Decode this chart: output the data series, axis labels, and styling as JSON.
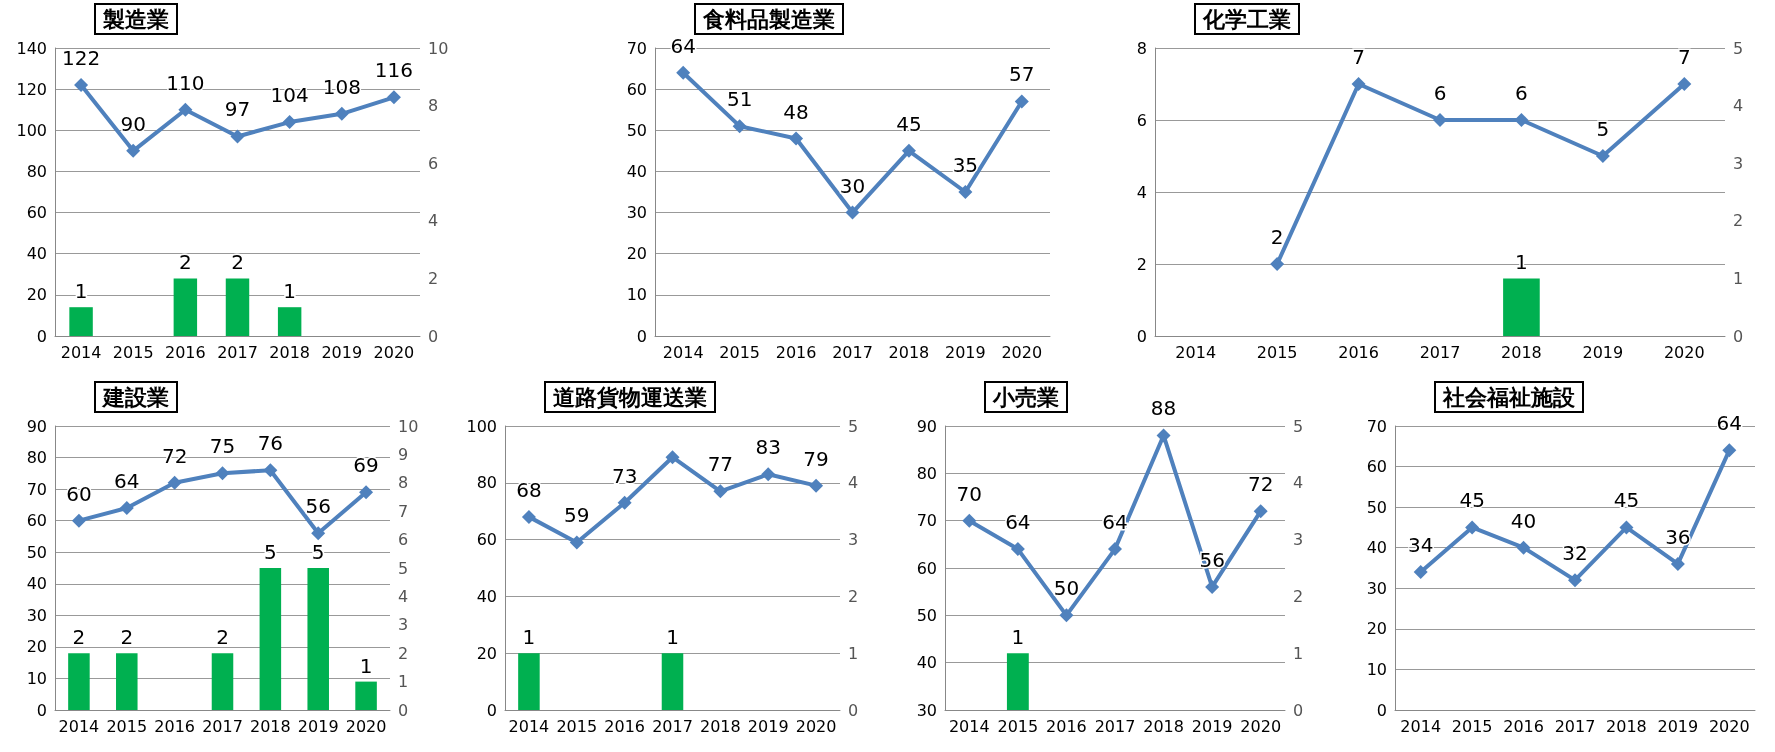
{
  "chart_data": [
    {
      "type": "line",
      "title": "製造業",
      "categories": [
        "2014",
        "2015",
        "2016",
        "2017",
        "2018",
        "2019",
        "2020"
      ],
      "ylim": [
        0,
        140
      ],
      "yticks": [
        0,
        20,
        40,
        60,
        80,
        100,
        120,
        140
      ],
      "y2lim": [
        0,
        10
      ],
      "y2ticks": [
        0,
        2,
        4,
        6,
        8,
        10
      ],
      "grid": "y",
      "marker": "diamond",
      "data_labels": true,
      "series": [
        {
          "type": "bar",
          "axis": "y2",
          "color": "#00b050",
          "values": [
            1,
            null,
            2,
            2,
            1,
            null,
            null
          ]
        },
        {
          "color": "#4f81bd",
          "values": [
            122,
            90,
            110,
            97,
            104,
            108,
            116
          ]
        }
      ]
    },
    {
      "type": "line",
      "title": "食料品製造業",
      "categories": [
        "2014",
        "2015",
        "2016",
        "2017",
        "2018",
        "2019",
        "2020"
      ],
      "ylim": [
        0,
        70
      ],
      "yticks": [
        0,
        10,
        20,
        30,
        40,
        50,
        60,
        70
      ],
      "grid": "y",
      "marker": "diamond",
      "data_labels": true,
      "series": [
        {
          "color": "#4f81bd",
          "values": [
            64,
            51,
            48,
            30,
            45,
            35,
            57
          ]
        }
      ]
    },
    {
      "type": "line",
      "title": "化学工業",
      "categories": [
        "2014",
        "2015",
        "2016",
        "2017",
        "2018",
        "2019",
        "2020"
      ],
      "ylim": [
        0,
        8
      ],
      "yticks": [
        0,
        2,
        4,
        6,
        8
      ],
      "y2lim": [
        0,
        5
      ],
      "y2ticks": [
        0,
        1,
        2,
        3,
        4,
        5
      ],
      "grid": "y",
      "marker": "diamond",
      "data_labels": true,
      "series": [
        {
          "type": "bar",
          "axis": "y2",
          "color": "#00b050",
          "values": [
            null,
            null,
            null,
            null,
            1,
            null,
            null
          ]
        },
        {
          "color": "#4f81bd",
          "values": [
            null,
            2,
            7,
            6,
            6,
            5,
            7
          ]
        }
      ]
    },
    {
      "type": "line",
      "title": "建設業",
      "categories": [
        "2014",
        "2015",
        "2016",
        "2017",
        "2018",
        "2019",
        "2020"
      ],
      "ylim": [
        0,
        90
      ],
      "yticks": [
        0,
        10,
        20,
        30,
        40,
        50,
        60,
        70,
        80,
        90
      ],
      "y2lim": [
        0,
        10
      ],
      "y2ticks": [
        0,
        1,
        2,
        3,
        4,
        5,
        6,
        7,
        8,
        9,
        10
      ],
      "grid": "y",
      "marker": "diamond",
      "data_labels": true,
      "series": [
        {
          "type": "bar",
          "axis": "y2",
          "color": "#00b050",
          "values": [
            2,
            2,
            null,
            2,
            5,
            5,
            1
          ]
        },
        {
          "color": "#4f81bd",
          "values": [
            60,
            64,
            72,
            75,
            76,
            56,
            69
          ]
        }
      ]
    },
    {
      "type": "line",
      "title": "道路貨物運送業",
      "categories": [
        "2014",
        "2015",
        "2016",
        "2017",
        "2018",
        "2019",
        "2020"
      ],
      "ylim": [
        0,
        100
      ],
      "yticks": [
        0,
        20,
        40,
        60,
        80,
        100
      ],
      "y2lim": [
        0,
        5
      ],
      "y2ticks": [
        0,
        1,
        2,
        3,
        4,
        5
      ],
      "grid": "y",
      "marker": "diamond",
      "series": [
        {
          "type": "bar",
          "axis": "y2",
          "color": "#00b050",
          "values": [
            1,
            null,
            null,
            1,
            null,
            null,
            null
          ],
          "value_labels": [
            "1",
            null,
            null,
            "1",
            null,
            null,
            null
          ]
        },
        {
          "color": "#4f81bd",
          "values": [
            68,
            59,
            73,
            89,
            77,
            83,
            79
          ],
          "value_labels": [
            "68",
            "59",
            "73",
            null,
            "77",
            "83",
            "79"
          ]
        }
      ]
    },
    {
      "type": "line",
      "title": "小売業",
      "categories": [
        "2014",
        "2015",
        "2016",
        "2017",
        "2018",
        "2019",
        "2020"
      ],
      "ylim": [
        30,
        90
      ],
      "yticks": [
        30,
        40,
        50,
        60,
        70,
        80,
        90
      ],
      "y2lim": [
        0,
        5
      ],
      "y2ticks": [
        0,
        1,
        2,
        3,
        4,
        5
      ],
      "grid": "y",
      "marker": "diamond",
      "data_labels": true,
      "series": [
        {
          "type": "bar",
          "axis": "y2",
          "color": "#00b050",
          "values": [
            null,
            1,
            null,
            null,
            null,
            null,
            null
          ]
        },
        {
          "color": "#4f81bd",
          "values": [
            70,
            64,
            50,
            64,
            88,
            56,
            72
          ]
        }
      ]
    },
    {
      "type": "line",
      "title": "社会福祉施設",
      "categories": [
        "2014",
        "2015",
        "2016",
        "2017",
        "2018",
        "2019",
        "2020"
      ],
      "ylim": [
        0,
        70
      ],
      "yticks": [
        0,
        10,
        20,
        30,
        40,
        50,
        60,
        70
      ],
      "grid": "y",
      "marker": "diamond",
      "data_labels": true,
      "series": [
        {
          "color": "#4f81bd",
          "values": [
            34,
            45,
            40,
            32,
            45,
            36,
            64
          ]
        }
      ]
    }
  ]
}
